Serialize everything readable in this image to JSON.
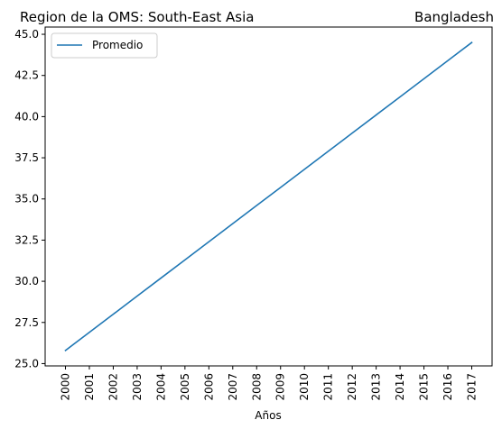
{
  "chart_data": {
    "type": "line",
    "title_left": "Region de la OMS: South-East Asia",
    "title_right": "Bangladesh",
    "xlabel": "Años",
    "ylabel": "",
    "x": [
      2000,
      2001,
      2002,
      2003,
      2004,
      2005,
      2006,
      2007,
      2008,
      2009,
      2010,
      2011,
      2012,
      2013,
      2014,
      2015,
      2016,
      2017
    ],
    "x_tick_labels": [
      "2000",
      "2001",
      "2002",
      "2003",
      "2004",
      "2005",
      "2006",
      "2007",
      "2008",
      "2009",
      "2010",
      "2011",
      "2012",
      "2013",
      "2014",
      "2015",
      "2016",
      "2017"
    ],
    "y_ticks": [
      25.0,
      27.5,
      30.0,
      32.5,
      35.0,
      37.5,
      40.0,
      42.5,
      45.0
    ],
    "y_tick_labels": [
      "25.0",
      "27.5",
      "30.0",
      "32.5",
      "35.0",
      "37.5",
      "40.0",
      "42.5",
      "45.0"
    ],
    "ylim": [
      24.86,
      45.44
    ],
    "grid": false,
    "legend_position": "top-left",
    "series": [
      {
        "name": "Promedio",
        "color": "#1f77b4",
        "values": [
          25.8,
          26.9,
          28.0,
          29.1,
          30.2,
          31.3,
          32.4,
          33.5,
          34.6,
          35.7,
          36.8,
          37.9,
          39.0,
          40.1,
          41.2,
          42.3,
          43.4,
          44.5
        ]
      }
    ]
  }
}
